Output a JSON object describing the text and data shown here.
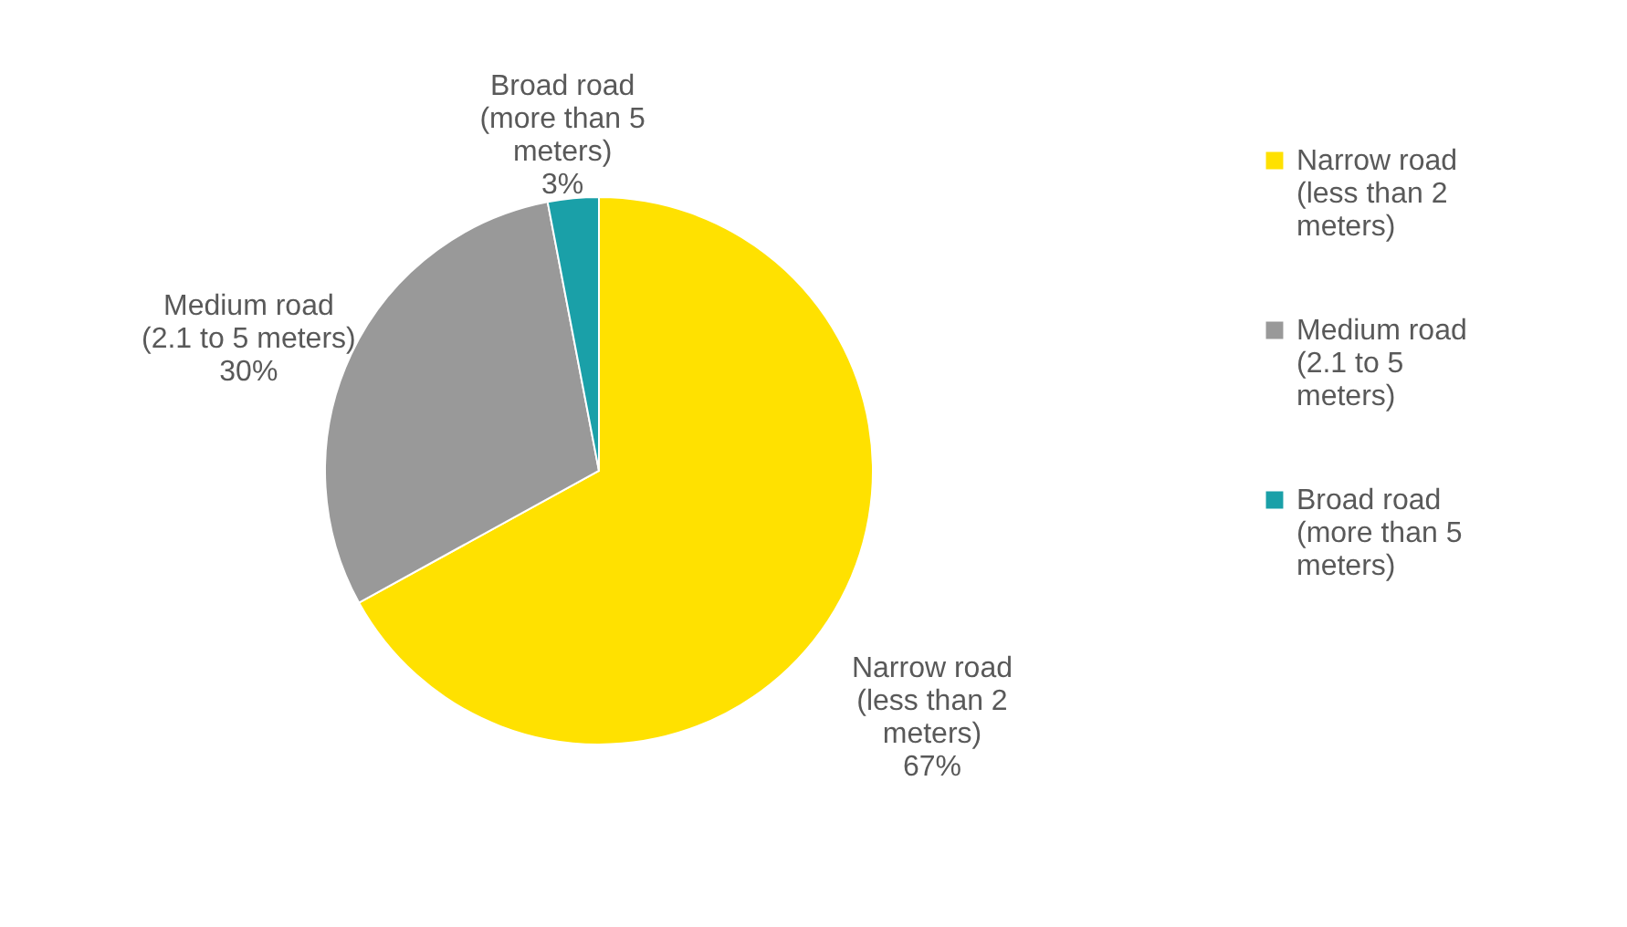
{
  "chart_data": {
    "type": "pie",
    "categories": [
      "Narrow road (less than 2 meters)",
      "Medium road (2.1 to 5 meters)",
      "Broad road (more than 5 meters)"
    ],
    "values": [
      67,
      30,
      3
    ],
    "colors": [
      "#ffe100",
      "#999999",
      "#1aa0a8"
    ],
    "value_labels": [
      "67%",
      "30%",
      "3%"
    ],
    "legend": "right"
  }
}
